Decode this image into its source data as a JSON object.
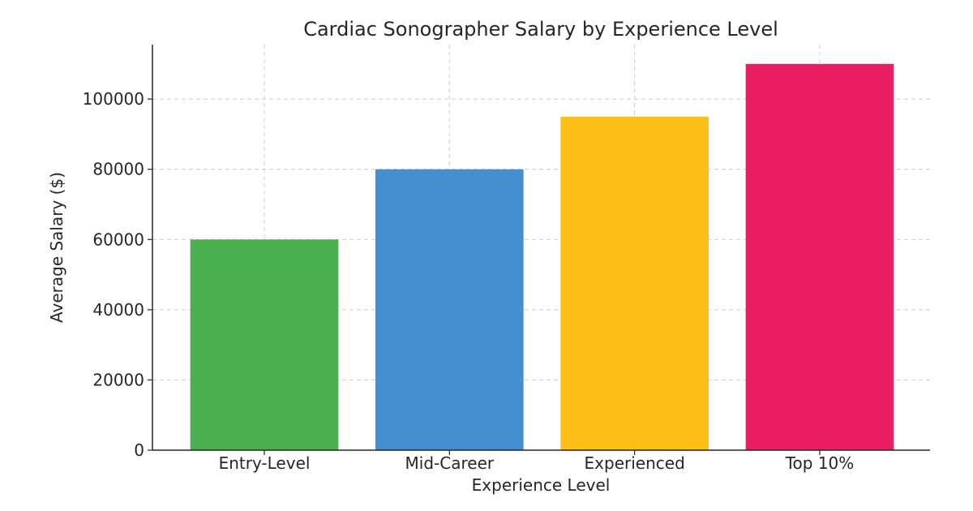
{
  "chart_data": {
    "type": "bar",
    "title": "Cardiac Sonographer Salary by Experience Level",
    "xlabel": "Experience Level",
    "ylabel": "Average Salary ($)",
    "categories": [
      "Entry-Level",
      "Mid-Career",
      "Experienced",
      "Top 10%"
    ],
    "values": [
      60000,
      80000,
      95000,
      110000
    ],
    "colors": [
      "#4caf50",
      "#448fcf",
      "#fbbf16",
      "#e91e63"
    ],
    "ylim": [
      0,
      115500
    ],
    "yticks": [
      0,
      20000,
      40000,
      60000,
      80000,
      100000
    ],
    "ytick_labels": [
      "0",
      "20000",
      "40000",
      "60000",
      "80000",
      "100000"
    ],
    "grid": true
  }
}
